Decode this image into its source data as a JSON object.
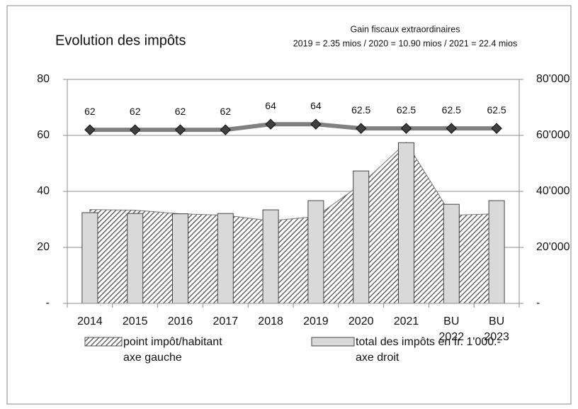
{
  "chart_data": {
    "type": "bar-area-line",
    "title": "Evolution des impôts",
    "annotation": [
      "Gain fiscaux extraordinaires",
      "2019 = 2.35 mios / 2020 = 10.90 mios / 2021 = 22.4 mios"
    ],
    "categories": [
      "2014",
      "2015",
      "2016",
      "2017",
      "2018",
      "2019",
      "2020",
      "2021",
      "BU\n2022",
      "BU\n2023"
    ],
    "series": [
      {
        "name": "point impôt/habitant\naxe gauche",
        "type": "area",
        "color": "#333333",
        "axis": "y",
        "values": [
          33.5,
          33.3,
          32,
          31.5,
          29.5,
          31,
          42.5,
          57.5,
          31.5,
          32
        ]
      },
      {
        "name": "total des impôts en fr. 1'000.-\naxe droit",
        "type": "bar",
        "color": "#d9d9d9",
        "axis": "y2",
        "values": [
          32400,
          32100,
          32000,
          32100,
          33400,
          36700,
          47300,
          57400,
          35400,
          36700
        ]
      },
      {
        "type": "line",
        "color": "#808080",
        "marker_color": "#404040",
        "axis": "y",
        "values": [
          62,
          62,
          62,
          62,
          64,
          64,
          62.5,
          62.5,
          62.5,
          62.5
        ]
      }
    ],
    "ylim": [
      0,
      80
    ],
    "yticks": [
      {
        "value": 0,
        "label": "-"
      },
      20,
      40,
      60,
      80
    ],
    "y2lim": [
      0,
      80000
    ],
    "y2ticks": [
      {
        "value": 0,
        "label": "-"
      },
      {
        "value": 20000,
        "label": "20'000"
      },
      {
        "value": 40000,
        "label": "40'000"
      },
      {
        "value": 60000,
        "label": "60'000"
      },
      {
        "value": 80000,
        "label": "80'000"
      }
    ],
    "grid": true
  }
}
